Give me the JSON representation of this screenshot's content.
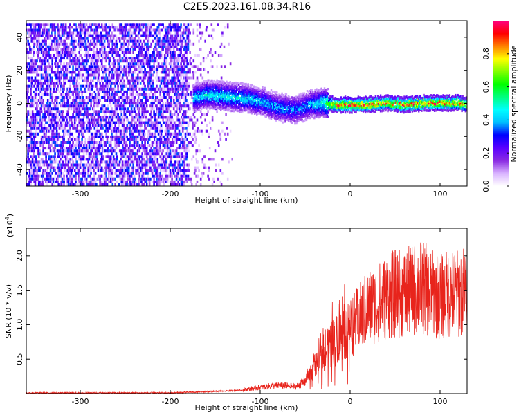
{
  "title": "C2E5.2023.161.08.34.R16",
  "chart_data": [
    {
      "type": "heatmap",
      "xlabel": "Height of straight line (km)",
      "ylabel": "Frequency (Hz)",
      "xlim": [
        -360,
        130
      ],
      "ylim": [
        -50,
        50
      ],
      "xticks": [
        -300,
        -200,
        -100,
        0,
        100
      ],
      "yticks": [
        -40,
        -20,
        0,
        20,
        40
      ],
      "colorbar": {
        "label": "Normalized spectral amplitude",
        "range": [
          0.0,
          1.0
        ],
        "ticks": [
          0.0,
          0.2,
          0.4,
          0.6,
          0.8
        ],
        "colormap": [
          "#ffffff",
          "#d9b3ff",
          "#8a2be2",
          "#5a00ff",
          "#0000ff",
          "#00bfff",
          "#00ffff",
          "#00ff80",
          "#00ff00",
          "#80ff00",
          "#ffff00",
          "#ff8000",
          "#ff0000",
          "#ff0080"
        ]
      },
      "noise_region": {
        "x": [
          -360,
          -180
        ],
        "amplitude": 0.35
      },
      "ridge": [
        {
          "x": -175,
          "f": 4,
          "amp": 0.45
        },
        {
          "x": -160,
          "f": 6,
          "amp": 0.5
        },
        {
          "x": -140,
          "f": 5,
          "amp": 0.5
        },
        {
          "x": -120,
          "f": 4,
          "amp": 0.48
        },
        {
          "x": -100,
          "f": 2,
          "amp": 0.45
        },
        {
          "x": -80,
          "f": -2,
          "amp": 0.42
        },
        {
          "x": -60,
          "f": -3,
          "amp": 0.4
        },
        {
          "x": -45,
          "f": 0,
          "amp": 0.42
        },
        {
          "x": -30,
          "f": 1,
          "amp": 0.55
        },
        {
          "x": -20,
          "f": 0,
          "amp": 0.9
        },
        {
          "x": 0,
          "f": 0,
          "amp": 0.95
        },
        {
          "x": 20,
          "f": 0,
          "amp": 0.95
        },
        {
          "x": 40,
          "f": 1,
          "amp": 0.9
        },
        {
          "x": 60,
          "f": 0,
          "amp": 0.92
        },
        {
          "x": 80,
          "f": 1,
          "amp": 0.92
        },
        {
          "x": 100,
          "f": 1,
          "amp": 0.92
        },
        {
          "x": 120,
          "f": 1,
          "amp": 0.9
        },
        {
          "x": 130,
          "f": 0,
          "amp": 0.88
        }
      ]
    },
    {
      "type": "line",
      "xlabel": "Height of straight line (km)",
      "ylabel": "SNR (10 * v/v)",
      "scale_label": "(x10",
      "scale_exponent": "4",
      "scale_suffix": ")",
      "xlim": [
        -360,
        130
      ],
      "ylim": [
        0,
        2.4
      ],
      "xticks": [
        -300,
        -200,
        -100,
        0,
        100
      ],
      "yticks": [
        0.5,
        1.0,
        1.5,
        2.0
      ],
      "color": "#e8241c",
      "series": [
        {
          "x": [
            -360,
            -300,
            -200,
            -180,
            -150,
            -120,
            -100,
            -80,
            -60,
            -50,
            -40,
            -30,
            -25,
            -20,
            -10,
            0,
            10,
            20,
            30,
            40,
            50,
            60,
            70,
            80,
            90,
            100,
            110,
            120,
            130
          ],
          "values": [
            0.01,
            0.01,
            0.01,
            0.02,
            0.03,
            0.05,
            0.09,
            0.12,
            0.1,
            0.18,
            0.35,
            0.55,
            0.65,
            0.75,
            0.85,
            0.95,
            1.1,
            1.25,
            1.3,
            1.4,
            1.45,
            1.45,
            1.5,
            1.55,
            1.45,
            1.4,
            1.45,
            1.45,
            1.5
          ]
        }
      ]
    }
  ]
}
